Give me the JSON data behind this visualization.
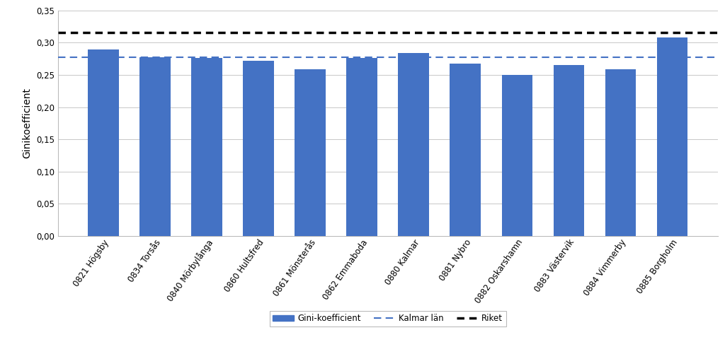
{
  "categories": [
    "0821 Högsby",
    "0834 Torsås",
    "0840 Mörbylånga",
    "0860 Hultsfred",
    "0861 Mönsterås",
    "0862 Emmaboda",
    "0880 Kalmar",
    "0881 Nybro",
    "0882 Oskarshamn",
    "0883 Västervik",
    "0884 Vimmerby",
    "0885 Borgholm"
  ],
  "values": [
    0.289,
    0.277,
    0.276,
    0.272,
    0.259,
    0.276,
    0.284,
    0.268,
    0.25,
    0.265,
    0.259,
    0.308
  ],
  "bar_color": "#4472C4",
  "kalmar_lan": 0.277,
  "riket": 0.316,
  "kalmar_color": "#4472C4",
  "riket_color": "#000000",
  "ylabel": "Ginikoefficient",
  "ylim": [
    0.0,
    0.35
  ],
  "yticks": [
    0.0,
    0.05,
    0.1,
    0.15,
    0.2,
    0.25,
    0.3,
    0.35
  ],
  "legend_bar_label": "Gini-koefficient",
  "legend_kalmar_label": "Kalmar län",
  "legend_riket_label": "Riket",
  "background_color": "#ffffff",
  "grid_color": "#c8c8c8",
  "tick_fontsize": 8.5,
  "label_fontsize": 10
}
